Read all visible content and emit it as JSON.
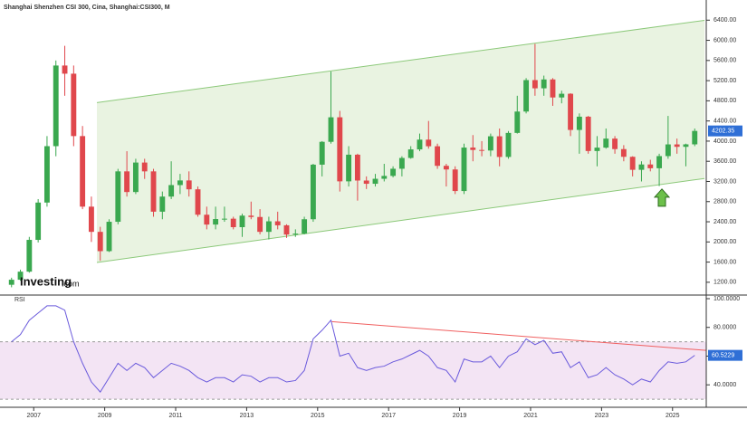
{
  "chart_data": {
    "type": "candlestick",
    "title": "Shanghai Shenzhen CSI 300, Cina, Shanghai:CSI300, M",
    "logo": "Investing",
    "logo_suffix": ".com",
    "up_color": "#3aa84f",
    "down_color": "#e0474c",
    "tag_color": "#2f6fd6",
    "xlim": [
      2006.05,
      2025.95
    ],
    "xticks": [
      2007,
      2009,
      2011,
      2013,
      2015,
      2017,
      2019,
      2021,
      2023,
      2025
    ],
    "ylim": [
      1000,
      6800
    ],
    "yticks": [
      {
        "value": 1200,
        "label": "1200.00"
      },
      {
        "value": 1600,
        "label": "1600.00"
      },
      {
        "value": 2000,
        "label": "2000.00"
      },
      {
        "value": 2400,
        "label": "2400.00"
      },
      {
        "value": 2800,
        "label": "2800.00"
      },
      {
        "value": 3200,
        "label": "3200.00"
      },
      {
        "value": 3600,
        "label": "3600.00"
      },
      {
        "value": 4000,
        "label": "4000.00"
      },
      {
        "value": 4400,
        "label": "4400.00"
      },
      {
        "value": 4800,
        "label": "4800.00"
      },
      {
        "value": 5200,
        "label": "5200.00"
      },
      {
        "value": 5600,
        "label": "5600.00"
      },
      {
        "value": 6000,
        "label": "6000.00"
      },
      {
        "value": 6400,
        "label": "6400.00"
      }
    ],
    "x": [
      2006.375,
      2006.625,
      2006.875,
      2007.125,
      2007.375,
      2007.625,
      2007.875,
      2008.125,
      2008.375,
      2008.625,
      2008.875,
      2009.125,
      2009.375,
      2009.625,
      2009.875,
      2010.125,
      2010.375,
      2010.625,
      2010.875,
      2011.125,
      2011.375,
      2011.625,
      2011.875,
      2012.125,
      2012.375,
      2012.625,
      2012.875,
      2013.125,
      2013.375,
      2013.625,
      2013.875,
      2014.125,
      2014.375,
      2014.625,
      2014.875,
      2015.125,
      2015.375,
      2015.625,
      2015.875,
      2016.125,
      2016.375,
      2016.625,
      2016.875,
      2017.125,
      2017.375,
      2017.625,
      2017.875,
      2018.125,
      2018.375,
      2018.625,
      2018.875,
      2019.125,
      2019.375,
      2019.625,
      2019.875,
      2020.125,
      2020.375,
      2020.625,
      2020.875,
      2021.125,
      2021.375,
      2021.625,
      2021.875,
      2022.125,
      2022.375,
      2022.625,
      2022.875,
      2023.125,
      2023.375,
      2023.625,
      2023.875,
      2024.125,
      2024.375,
      2024.625,
      2024.875,
      2025.125,
      2025.375,
      2025.625
    ],
    "open": [
      1150,
      1250,
      1410,
      2041,
      2781,
      3900,
      5500,
      5338,
      4100,
      2700,
      2200,
      1817,
      2400,
      3400,
      2990,
      3575,
      3400,
      2600,
      2900,
      3128,
      3220,
      3044,
      2540,
      2345,
      2454,
      2461,
      2293,
      2522,
      2495,
      2200,
      2409,
      2330,
      2146,
      2165,
      2450,
      3533,
      3986,
      4473,
      3202,
      3731,
      3218,
      3154,
      3253,
      3310,
      3452,
      3666,
      3836,
      4030,
      3898,
      3510,
      3438,
      3010,
      3872,
      3825,
      3814,
      4096,
      3686,
      4163,
      4587,
      5211,
      5048,
      5224,
      4866,
      4940,
      4222,
      4485,
      3804,
      3871,
      4050,
      3842,
      3689,
      3431,
      3537,
      3462,
      3703,
      3935,
      3887,
      3936
    ],
    "high": [
      1290,
      1450,
      2100,
      2850,
      4100,
      5600,
      5891,
      5500,
      4300,
      2900,
      2300,
      2450,
      3450,
      3800,
      3650,
      3650,
      3450,
      3000,
      3600,
      3350,
      3400,
      3100,
      2700,
      2700,
      2700,
      2500,
      2560,
      2800,
      2650,
      2500,
      2600,
      2350,
      2250,
      2500,
      3550,
      4000,
      5380,
      4600,
      3900,
      3750,
      3300,
      3350,
      3550,
      3500,
      3700,
      3900,
      4150,
      4400,
      3950,
      3550,
      3500,
      3950,
      4120,
      4000,
      4150,
      4250,
      4200,
      4900,
      5250,
      5930,
      5300,
      5250,
      5000,
      4950,
      4550,
      4500,
      4100,
      4250,
      4100,
      3920,
      3700,
      3600,
      3630,
      3750,
      4500,
      4050,
      3950,
      4250
    ],
    "low": [
      1100,
      1230,
      1390,
      1990,
      2700,
      3700,
      4900,
      3900,
      2650,
      2000,
      1627,
      1800,
      2350,
      2900,
      2950,
      3250,
      2500,
      2450,
      2850,
      2950,
      2900,
      2500,
      2250,
      2250,
      2400,
      2250,
      2100,
      2450,
      2150,
      2050,
      2250,
      2080,
      2100,
      2150,
      2400,
      3300,
      3950,
      3000,
      3100,
      2820,
      3050,
      3100,
      3200,
      3280,
      3300,
      3650,
      3800,
      3850,
      3450,
      3100,
      2950,
      2950,
      3600,
      3700,
      3700,
      3500,
      3650,
      4150,
      4550,
      4900,
      4900,
      4700,
      4750,
      4100,
      3750,
      3750,
      3500,
      3850,
      3750,
      3600,
      3300,
      3200,
      3400,
      3108,
      3650,
      3750,
      3500,
      3900
    ],
    "close": [
      1250,
      1410,
      2041,
      2781,
      3900,
      5500,
      5338,
      4100,
      2700,
      2200,
      1817,
      2400,
      3400,
      2990,
      3575,
      3400,
      2600,
      2900,
      3128,
      3220,
      3044,
      2540,
      2345,
      2454,
      2461,
      2293,
      2522,
      2495,
      2200,
      2409,
      2330,
      2146,
      2165,
      2450,
      3533,
      3986,
      4473,
      3202,
      3731,
      3218,
      3154,
      3253,
      3310,
      3452,
      3666,
      3836,
      4030,
      3898,
      3510,
      3438,
      3010,
      3872,
      3825,
      3814,
      4096,
      3686,
      4163,
      4587,
      5211,
      5048,
      5224,
      4866,
      4940,
      4222,
      4485,
      3804,
      3871,
      4050,
      3842,
      3689,
      3431,
      3537,
      3462,
      3703,
      3935,
      3887,
      3936,
      4202.35
    ],
    "channel": {
      "fill": "#e9f3e1",
      "stroke": "#8cc97a",
      "x": [
        2008.78,
        2025.9
      ],
      "upper": [
        4765,
        6397
      ],
      "lower": [
        1592,
        3259
      ]
    },
    "arrow": {
      "x": 2024.7,
      "y": 3050,
      "color": "#6cc04a"
    },
    "indicator": {
      "type": "line",
      "name": "RSI",
      "color": "#6b5bdc",
      "band_fill": "#f3e4f4",
      "levels": [
        30,
        70
      ],
      "ylim": [
        25,
        100
      ],
      "yticks": [
        {
          "value": 40,
          "label": "40.0000"
        },
        {
          "value": 60,
          "label": "60.0000"
        },
        {
          "value": 80,
          "label": "80.0000"
        },
        {
          "value": 100,
          "label": "100.0000"
        }
      ],
      "values": [
        70,
        75,
        85,
        90,
        95,
        95,
        92,
        70,
        55,
        42,
        35,
        45,
        55,
        50,
        55,
        52,
        45,
        50,
        55,
        53,
        50,
        45,
        42,
        45,
        45,
        42,
        47,
        46,
        42,
        45,
        45,
        42,
        43,
        50,
        72,
        78,
        85,
        60,
        62,
        52,
        50,
        52,
        53,
        56,
        58,
        61,
        64,
        60,
        52,
        50,
        42,
        58,
        56,
        56,
        60,
        52,
        60,
        63,
        72,
        68,
        71,
        62,
        63,
        52,
        56,
        45,
        47,
        52,
        47,
        44,
        40,
        44,
        42,
        50,
        56,
        55,
        56,
        60.5229
      ],
      "trendline": {
        "color": "#f06060",
        "x": [
          2015.4,
          2025.95
        ],
        "values": [
          84,
          64
        ]
      }
    }
  }
}
